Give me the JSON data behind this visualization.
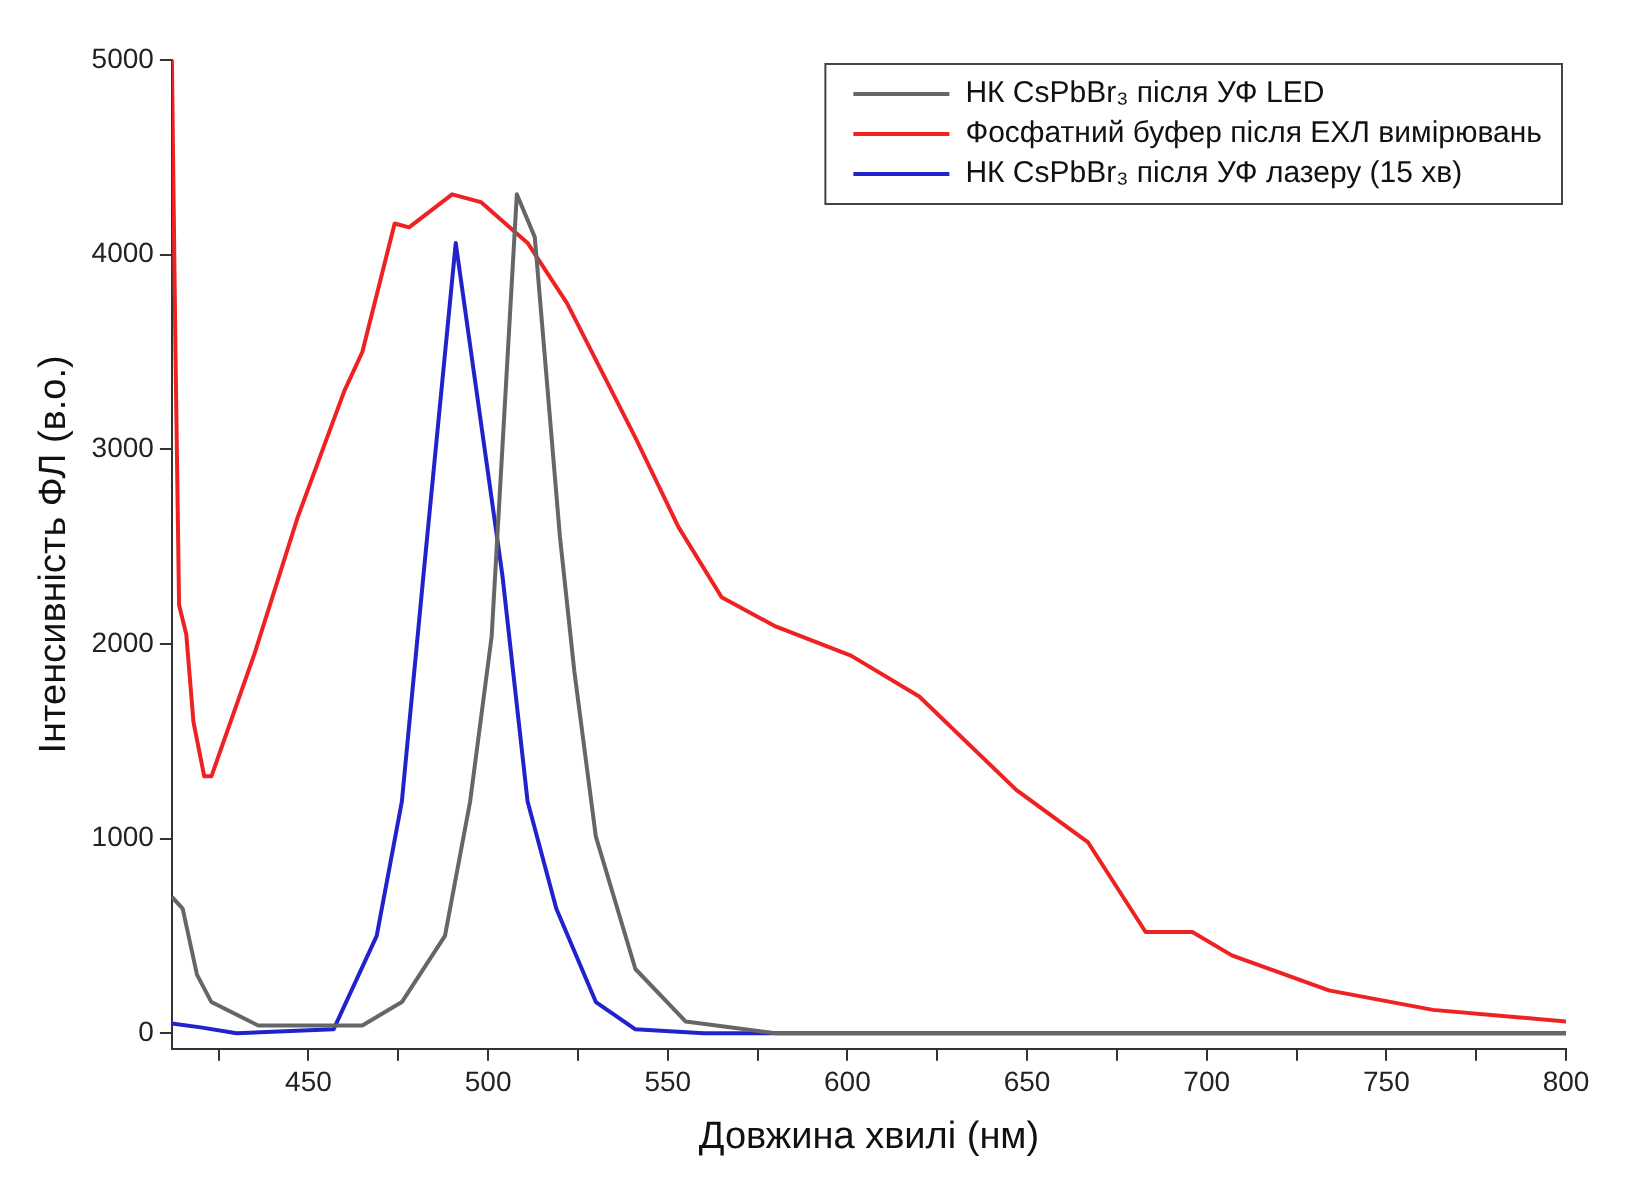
{
  "chart_data": {
    "type": "line",
    "xlabel": "Довжина хвилі (нм)",
    "ylabel": "Інтенсивність ФЛ (в.о.)",
    "xlim": [
      412,
      800
    ],
    "ylim": [
      -80,
      5000
    ],
    "xticks": [
      {
        "value": 425,
        "label": null
      },
      450,
      {
        "value": 475,
        "label": null
      },
      500,
      {
        "value": 525,
        "label": null
      },
      550,
      {
        "value": 575,
        "label": null
      },
      600,
      {
        "value": 625,
        "label": null
      },
      650,
      {
        "value": 675,
        "label": null
      },
      700,
      {
        "value": 725,
        "label": null
      },
      750,
      {
        "value": 775,
        "label": null
      },
      800
    ],
    "yticks": [
      0,
      1000,
      2000,
      3000,
      4000,
      5000
    ],
    "grid": false,
    "legend": "top right",
    "marker": "none",
    "series": [
      {
        "name": "НК CsPbBr₃ після УФ LED",
        "color": "#666666",
        "x": [
          412,
          415,
          419,
          423,
          436,
          465,
          476,
          488,
          495,
          501,
          508,
          513,
          520,
          524,
          530,
          541,
          555,
          580,
          650,
          800
        ],
        "values": [
          700,
          640,
          300,
          160,
          40,
          40,
          160,
          500,
          1190,
          2040,
          4310,
          4090,
          2550,
          1860,
          1010,
          330,
          60,
          0,
          0,
          0
        ]
      },
      {
        "name": "Фосфатний буфер після ЕХЛ вимірювань",
        "color": "#ee2222",
        "x": [
          412,
          413,
          414,
          416,
          418,
          421,
          423,
          435,
          447,
          460,
          465,
          474,
          478,
          490,
          498,
          511,
          522,
          541,
          553,
          565,
          580,
          601,
          620,
          647,
          667,
          683,
          696,
          707,
          734,
          763,
          800
        ],
        "values": [
          5000,
          3500,
          2200,
          2050,
          1600,
          1320,
          1320,
          1950,
          2650,
          3300,
          3500,
          4160,
          4140,
          4310,
          4270,
          4060,
          3750,
          3060,
          2600,
          2240,
          2090,
          1940,
          1730,
          1250,
          980,
          520,
          520,
          400,
          220,
          120,
          60
        ]
      },
      {
        "name": "НК CsPbBr₃ після УФ лазеру (15 хв)",
        "color": "#2222cc",
        "x": [
          412,
          420,
          430,
          457,
          469,
          476,
          482,
          491,
          504,
          511,
          519,
          530,
          541,
          560,
          800
        ],
        "values": [
          50,
          30,
          0,
          20,
          500,
          1190,
          2350,
          4060,
          2350,
          1190,
          640,
          160,
          20,
          0,
          0
        ]
      }
    ]
  }
}
